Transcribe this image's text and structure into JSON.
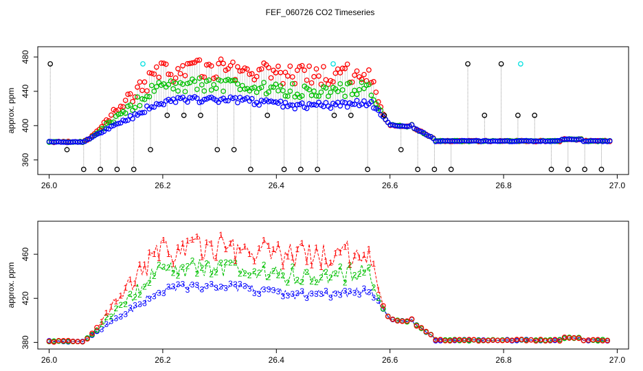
{
  "title": "FEF_060726  CO2 Timeseries",
  "colors": {
    "series1": "#ff0000",
    "series2": "#00c000",
    "series3": "#0000ff",
    "extra": "#000000",
    "highlight": "#00e0e0",
    "dotted": "#808080"
  },
  "chart_data": [
    {
      "type": "scatter",
      "ylabel": "approx. ppm",
      "xlim": [
        25.98,
        27.02
      ],
      "ylim": [
        343,
        492
      ],
      "xticks": [
        "26.0",
        "26.2",
        "26.4",
        "26.6",
        "26.8",
        "27.0"
      ],
      "xtick_values": [
        26.0,
        26.2,
        26.4,
        26.6,
        26.8,
        27.0
      ],
      "yticks": [
        "360",
        "400",
        "440",
        "480"
      ],
      "ytick_values": [
        360,
        400,
        440,
        480
      ],
      "marker": "o",
      "series": [
        {
          "name": "1",
          "color": "#ff0000"
        },
        {
          "name": "2",
          "color": "#00c000"
        },
        {
          "name": "3",
          "color": "#0000ff"
        },
        {
          "name": "extra",
          "color": "#000000"
        }
      ],
      "highlight_points": [
        [
          26.165,
          472
        ],
        [
          26.5,
          472
        ],
        [
          26.83,
          472
        ]
      ]
    },
    {
      "type": "line",
      "ylabel": "approx. ppm",
      "xlim": [
        25.98,
        27.02
      ],
      "ylim": [
        374,
        490
      ],
      "xticks": [
        "26.0",
        "26.2",
        "26.4",
        "26.6",
        "26.8",
        "27.0"
      ],
      "xtick_values": [
        26.0,
        26.2,
        26.4,
        26.6,
        26.8,
        27.0
      ],
      "yticks": [
        "380",
        "420",
        "460"
      ],
      "ytick_values": [
        380,
        420,
        460
      ],
      "series": [
        {
          "name": "1",
          "label": "1",
          "color": "#ff0000"
        },
        {
          "name": "2",
          "label": "2",
          "color": "#00c000"
        },
        {
          "name": "3",
          "label": "3",
          "color": "#0000ff"
        }
      ]
    }
  ]
}
